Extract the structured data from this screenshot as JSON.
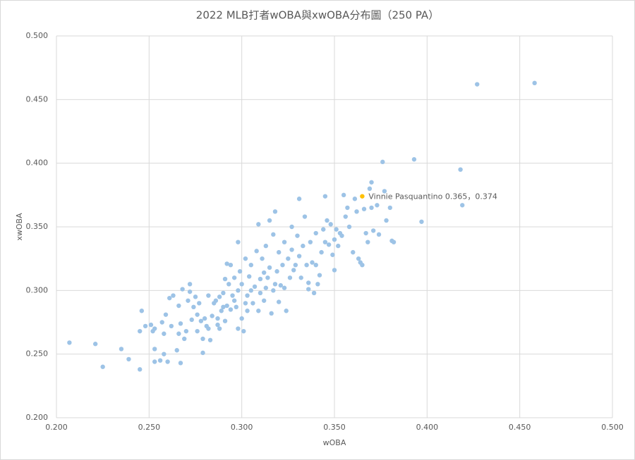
{
  "chart_data": {
    "type": "scatter",
    "title": "2022 MLB打者wOBA與xwOBA分布圖（250 PA）",
    "x_label": "wOBA",
    "y_label": "xwOBA",
    "xlim": [
      0.2,
      0.5
    ],
    "xticks": [
      {
        "value": 0.2,
        "label": "0.200"
      },
      {
        "value": 0.25,
        "label": "0.250"
      },
      {
        "value": 0.3,
        "label": "0.300"
      },
      {
        "value": 0.35,
        "label": "0.350"
      },
      {
        "value": 0.4,
        "label": "0.400"
      },
      {
        "value": 0.45,
        "label": "0.450"
      },
      {
        "value": 0.5,
        "label": "0.500"
      }
    ],
    "ylim": [
      0.2,
      0.5
    ],
    "yticks": [
      {
        "value": 0.2,
        "label": "0.200"
      },
      {
        "value": 0.25,
        "label": "0.250"
      },
      {
        "value": 0.3,
        "label": "0.300"
      },
      {
        "value": 0.35,
        "label": "0.350"
      },
      {
        "value": 0.4,
        "label": "0.400"
      },
      {
        "value": 0.45,
        "label": "0.450"
      },
      {
        "value": 0.5,
        "label": "0.500"
      }
    ],
    "grid": true,
    "series": [
      {
        "color": "#9dc3e6",
        "x": [
          0.207,
          0.221,
          0.225,
          0.235,
          0.239,
          0.245,
          0.245,
          0.246,
          0.248,
          0.251,
          0.252,
          0.253,
          0.253,
          0.253,
          0.256,
          0.257,
          0.258,
          0.258,
          0.259,
          0.26,
          0.261,
          0.262,
          0.263,
          0.265,
          0.266,
          0.266,
          0.267,
          0.267,
          0.268,
          0.269,
          0.27,
          0.271,
          0.272,
          0.272,
          0.273,
          0.274,
          0.275,
          0.276,
          0.276,
          0.277,
          0.278,
          0.279,
          0.279,
          0.28,
          0.281,
          0.282,
          0.282,
          0.283,
          0.284,
          0.285,
          0.286,
          0.287,
          0.287,
          0.288,
          0.288,
          0.289,
          0.29,
          0.29,
          0.291,
          0.291,
          0.292,
          0.292,
          0.293,
          0.294,
          0.294,
          0.295,
          0.296,
          0.296,
          0.297,
          0.298,
          0.298,
          0.298,
          0.299,
          0.3,
          0.3,
          0.301,
          0.302,
          0.302,
          0.303,
          0.303,
          0.304,
          0.305,
          0.305,
          0.306,
          0.307,
          0.308,
          0.309,
          0.309,
          0.31,
          0.31,
          0.311,
          0.312,
          0.312,
          0.313,
          0.313,
          0.314,
          0.315,
          0.315,
          0.316,
          0.317,
          0.317,
          0.318,
          0.318,
          0.319,
          0.32,
          0.32,
          0.321,
          0.322,
          0.323,
          0.323,
          0.324,
          0.325,
          0.326,
          0.327,
          0.327,
          0.328,
          0.329,
          0.33,
          0.331,
          0.331,
          0.332,
          0.333,
          0.334,
          0.335,
          0.336,
          0.336,
          0.337,
          0.338,
          0.339,
          0.34,
          0.34,
          0.341,
          0.342,
          0.343,
          0.344,
          0.345,
          0.345,
          0.346,
          0.347,
          0.348,
          0.349,
          0.35,
          0.35,
          0.351,
          0.352,
          0.353,
          0.354,
          0.355,
          0.356,
          0.357,
          0.358,
          0.36,
          0.361,
          0.362,
          0.363,
          0.364,
          0.365,
          0.366,
          0.367,
          0.368,
          0.369,
          0.37,
          0.37,
          0.371,
          0.373,
          0.374,
          0.376,
          0.377,
          0.378,
          0.38,
          0.381,
          0.382,
          0.393,
          0.397,
          0.418,
          0.419,
          0.427,
          0.458
        ],
        "values": [
          0.259,
          0.258,
          0.24,
          0.254,
          0.246,
          0.238,
          0.268,
          0.284,
          0.272,
          0.273,
          0.268,
          0.27,
          0.254,
          0.244,
          0.245,
          0.275,
          0.25,
          0.266,
          0.281,
          0.244,
          0.294,
          0.272,
          0.296,
          0.253,
          0.266,
          0.288,
          0.274,
          0.243,
          0.301,
          0.262,
          0.268,
          0.292,
          0.305,
          0.299,
          0.277,
          0.287,
          0.295,
          0.268,
          0.281,
          0.29,
          0.276,
          0.262,
          0.251,
          0.278,
          0.272,
          0.296,
          0.27,
          0.261,
          0.28,
          0.29,
          0.292,
          0.278,
          0.273,
          0.27,
          0.295,
          0.284,
          0.287,
          0.298,
          0.309,
          0.276,
          0.321,
          0.288,
          0.305,
          0.32,
          0.285,
          0.296,
          0.31,
          0.292,
          0.287,
          0.27,
          0.338,
          0.3,
          0.315,
          0.278,
          0.305,
          0.268,
          0.29,
          0.325,
          0.284,
          0.296,
          0.311,
          0.3,
          0.32,
          0.29,
          0.303,
          0.331,
          0.352,
          0.284,
          0.309,
          0.298,
          0.325,
          0.314,
          0.292,
          0.335,
          0.302,
          0.31,
          0.318,
          0.355,
          0.282,
          0.3,
          0.344,
          0.362,
          0.305,
          0.315,
          0.291,
          0.33,
          0.304,
          0.32,
          0.302,
          0.338,
          0.284,
          0.325,
          0.31,
          0.332,
          0.35,
          0.316,
          0.32,
          0.343,
          0.372,
          0.327,
          0.31,
          0.335,
          0.358,
          0.32,
          0.306,
          0.301,
          0.338,
          0.322,
          0.298,
          0.345,
          0.32,
          0.305,
          0.312,
          0.33,
          0.348,
          0.338,
          0.374,
          0.355,
          0.336,
          0.352,
          0.328,
          0.316,
          0.34,
          0.348,
          0.335,
          0.345,
          0.343,
          0.375,
          0.358,
          0.365,
          0.35,
          0.33,
          0.372,
          0.362,
          0.325,
          0.322,
          0.32,
          0.364,
          0.345,
          0.338,
          0.38,
          0.385,
          0.365,
          0.347,
          0.367,
          0.344,
          0.401,
          0.378,
          0.355,
          0.365,
          0.339,
          0.338,
          0.403,
          0.354,
          0.395,
          0.367,
          0.462,
          0.463
        ]
      },
      {
        "color": "#ffc000",
        "label": "Vinnie Pasquantino 0.365，0.374",
        "x": [
          0.365
        ],
        "values": [
          0.374
        ]
      }
    ]
  }
}
